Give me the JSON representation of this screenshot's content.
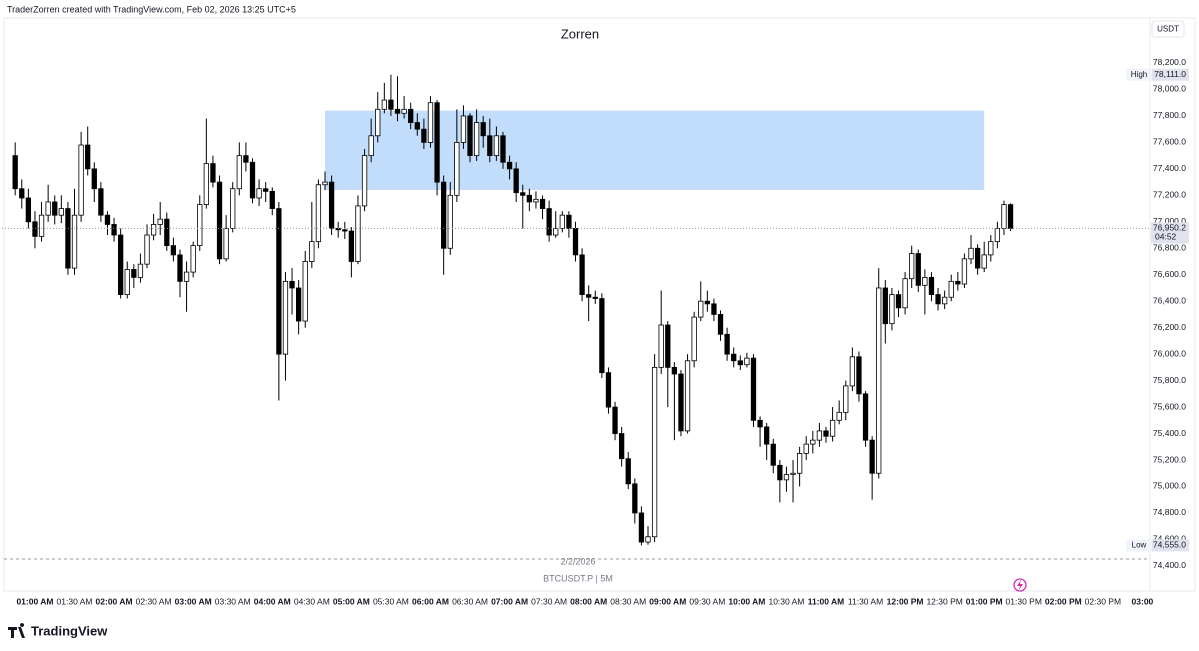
{
  "header": "TraderZorren created with TradingView.com, Feb 02, 2026 13:25 UTC+5",
  "brand": "TradingView",
  "chart_data": {
    "type": "candlestick",
    "title": "Zorren",
    "currency": "USDT",
    "symbol_label": "BTCUSDT.P | 5M",
    "date_label": "2/2/2026",
    "up_color": "#ffffff",
    "down_color": "#000000",
    "wick_color": "#000000",
    "grid": false,
    "xlim": [
      35,
      905
    ],
    "xticks": [
      {
        "value": 60,
        "label": "01:00 AM"
      },
      {
        "value": 90,
        "label": "01:30 AM"
      },
      {
        "value": 120,
        "label": "02:00 AM"
      },
      {
        "value": 150,
        "label": "02:30 AM"
      },
      {
        "value": 180,
        "label": "03:00 AM"
      },
      {
        "value": 210,
        "label": "03:30 AM"
      },
      {
        "value": 240,
        "label": "04:00 AM"
      },
      {
        "value": 270,
        "label": "04:30 AM"
      },
      {
        "value": 300,
        "label": "05:00 AM"
      },
      {
        "value": 330,
        "label": "05:30 AM"
      },
      {
        "value": 360,
        "label": "06:00 AM"
      },
      {
        "value": 390,
        "label": "06:30 AM"
      },
      {
        "value": 420,
        "label": "07:00 AM"
      },
      {
        "value": 450,
        "label": "07:30 AM"
      },
      {
        "value": 480,
        "label": "08:00 AM"
      },
      {
        "value": 510,
        "label": "08:30 AM"
      },
      {
        "value": 540,
        "label": "09:00 AM"
      },
      {
        "value": 570,
        "label": "09:30 AM"
      },
      {
        "value": 600,
        "label": "10:00 AM"
      },
      {
        "value": 630,
        "label": "10:30 AM"
      },
      {
        "value": 660,
        "label": "11:00 AM"
      },
      {
        "value": 690,
        "label": "11:30 AM"
      },
      {
        "value": 720,
        "label": "12:00 PM"
      },
      {
        "value": 750,
        "label": "12:30 PM"
      },
      {
        "value": 780,
        "label": "01:00 PM"
      },
      {
        "value": 810,
        "label": "01:30 PM"
      },
      {
        "value": 840,
        "label": "02:00 PM"
      },
      {
        "value": 870,
        "label": "02:30 PM"
      },
      {
        "value": 900,
        "label": "03:00"
      }
    ],
    "ylim": [
      74180,
      78540
    ],
    "yticks": [
      {
        "value": 74400,
        "label": "74,400.0"
      },
      {
        "value": 74600,
        "label": "74,600.0"
      },
      {
        "value": 74800,
        "label": "74,800.0"
      },
      {
        "value": 75000,
        "label": "75,000.0"
      },
      {
        "value": 75200,
        "label": "75,200.0"
      },
      {
        "value": 75400,
        "label": "75,400.0"
      },
      {
        "value": 75600,
        "label": "75,600.0"
      },
      {
        "value": 75800,
        "label": "75,800.0"
      },
      {
        "value": 76000,
        "label": "76,000.0"
      },
      {
        "value": 76200,
        "label": "76,200.0"
      },
      {
        "value": 76400,
        "label": "76,400.0"
      },
      {
        "value": 76600,
        "label": "76,600.0"
      },
      {
        "value": 76800,
        "label": "76,800.0"
      },
      {
        "value": 77000,
        "label": "77,000.0"
      },
      {
        "value": 77200,
        "label": "77,200.0"
      },
      {
        "value": 77400,
        "label": "77,400.0"
      },
      {
        "value": 77600,
        "label": "77,600.0"
      },
      {
        "value": 77800,
        "label": "77,800.0"
      },
      {
        "value": 78000,
        "label": "78,000.0"
      },
      {
        "value": 78200,
        "label": "78,200.0"
      }
    ],
    "zone": {
      "x": [
        280,
        780
      ],
      "y": [
        77240,
        77840
      ],
      "color": "#c2ddfb"
    },
    "high_marker": {
      "text": "High",
      "value": 78111.0,
      "value_label": "78,111.0"
    },
    "low_marker": {
      "text": "Low",
      "value": 74555.0,
      "value_label": "74,555.0"
    },
    "last_price": {
      "value": 76950.2,
      "value_label": "76,950.2",
      "countdown": "04:52"
    },
    "x": [
      45,
      50,
      55,
      60,
      65,
      70,
      75,
      80,
      85,
      90,
      95,
      100,
      105,
      110,
      115,
      120,
      125,
      130,
      135,
      140,
      145,
      150,
      155,
      160,
      165,
      170,
      175,
      180,
      185,
      190,
      195,
      200,
      205,
      210,
      215,
      220,
      225,
      230,
      235,
      240,
      245,
      250,
      255,
      260,
      265,
      270,
      275,
      280,
      285,
      290,
      295,
      300,
      305,
      310,
      315,
      320,
      325,
      330,
      335,
      340,
      345,
      350,
      355,
      360,
      365,
      370,
      375,
      380,
      385,
      390,
      395,
      400,
      405,
      410,
      415,
      420,
      425,
      430,
      435,
      440,
      445,
      450,
      455,
      460,
      465,
      470,
      475,
      480,
      485,
      490,
      495,
      500,
      505,
      510,
      515,
      520,
      525,
      530,
      535,
      540,
      545,
      550,
      555,
      560,
      565,
      570,
      575,
      580,
      585,
      590,
      595,
      600,
      605,
      610,
      615,
      620,
      625,
      630,
      635,
      640,
      645,
      650,
      655,
      660,
      665,
      670,
      675,
      680,
      685,
      690,
      695,
      700,
      705,
      710,
      715,
      720,
      725,
      730,
      735,
      740,
      745,
      750,
      755,
      760,
      765,
      770,
      775,
      780,
      785,
      790,
      795,
      800
    ],
    "open": [
      77500,
      77250,
      77180,
      77000,
      76890,
      77050,
      77150,
      77050,
      77100,
      76650,
      77050,
      77580,
      77400,
      77250,
      77050,
      76980,
      76900,
      76450,
      76640,
      76580,
      76680,
      76900,
      76980,
      77020,
      76820,
      76750,
      76550,
      76620,
      76820,
      77130,
      77440,
      77300,
      76720,
      76950,
      77250,
      77500,
      77450,
      77180,
      77250,
      77230,
      77100,
      76000,
      76550,
      76500,
      76250,
      76700,
      76850,
      77280,
      77300,
      76950,
      76940,
      76930,
      76700,
      77120,
      77500,
      77650,
      77850,
      77920,
      77850,
      77820,
      77850,
      77750,
      77700,
      77600,
      77900,
      77300,
      76800,
      77200,
      77600,
      77800,
      77500,
      77750,
      77650,
      77500,
      77650,
      77450,
      77400,
      77220,
      77200,
      77150,
      77170,
      77100,
      76900,
      76950,
      77050,
      76950,
      76750,
      76450,
      76430,
      76420,
      75860,
      75600,
      75400,
      75210,
      75020,
      74800,
      74580,
      74620,
      75900,
      76220,
      75900,
      75850,
      75420,
      75950,
      76280,
      76400,
      76380,
      76300,
      76150,
      76000,
      75950,
      75920,
      75970,
      75500,
      75450,
      75320,
      75160,
      75050,
      75090,
      75100,
      75250,
      75320,
      75350,
      75420,
      75380,
      75500,
      75560,
      75760,
      75980,
      75700,
      75350,
      75100,
      76500,
      76230,
      76450,
      76350,
      76570,
      76760,
      76520,
      76580,
      76450,
      76380,
      76430,
      76550,
      76530,
      76720,
      76800,
      76650,
      76750,
      76850,
      76950,
      77130
    ],
    "high": [
      77600,
      77320,
      77250,
      77080,
      77150,
      77280,
      77200,
      77200,
      77150,
      77250,
      77680,
      77720,
      77450,
      77300,
      77080,
      77030,
      76950,
      76700,
      76680,
      76760,
      76980,
      77060,
      77150,
      77070,
      76880,
      76790,
      76700,
      76850,
      77200,
      77780,
      77500,
      77350,
      77050,
      77300,
      77600,
      77600,
      77480,
      77320,
      77300,
      77260,
      77150,
      76620,
      76650,
      76560,
      76780,
      77150,
      77320,
      77380,
      77350,
      77000,
      77000,
      76960,
      77200,
      77550,
      77780,
      77980,
      78050,
      78111,
      78100,
      77950,
      77900,
      77820,
      77780,
      77950,
      77920,
      77350,
      77300,
      77850,
      77880,
      77820,
      77850,
      77800,
      77780,
      77720,
      77680,
      77500,
      77450,
      77280,
      77250,
      77230,
      77200,
      77160,
      77080,
      77080,
      77080,
      77000,
      76800,
      76520,
      76480,
      76460,
      75900,
      75640,
      75450,
      75260,
      75060,
      74850,
      74700,
      76000,
      76480,
      76250,
      75940,
      75880,
      76000,
      76320,
      76550,
      76480,
      76420,
      76330,
      76200,
      76050,
      75990,
      76010,
      76000,
      75530,
      75480,
      75360,
      75200,
      75150,
      75200,
      75300,
      75380,
      75420,
      75480,
      75450,
      75600,
      75650,
      75800,
      76050,
      76020,
      75720,
      75380,
      76650,
      76560,
      76500,
      76480,
      76620,
      76820,
      76790,
      76640,
      76620,
      76500,
      76480,
      76600,
      76620,
      76760,
      76900,
      76830,
      76850,
      76900,
      77000,
      77160,
      77140
    ],
    "low": [
      77200,
      77100,
      76950,
      76800,
      76850,
      77000,
      76980,
      76990,
      76600,
      76600,
      77000,
      77350,
      77150,
      77000,
      76900,
      76850,
      76420,
      76420,
      76500,
      76540,
      76650,
      76860,
      76900,
      76780,
      76700,
      76430,
      76320,
      76580,
      76780,
      77100,
      77260,
      76680,
      76700,
      76920,
      77200,
      77380,
      77140,
      77120,
      77150,
      77050,
      75650,
      75800,
      76300,
      76150,
      76200,
      76650,
      76800,
      77240,
      76900,
      76880,
      76870,
      76580,
      76680,
      77080,
      77450,
      77600,
      77820,
      77800,
      77760,
      77780,
      77700,
      77650,
      77550,
      77560,
      77200,
      76600,
      76750,
      77150,
      77550,
      77450,
      77460,
      77560,
      77450,
      77460,
      77400,
      77320,
      77150,
      76950,
      77080,
      77100,
      77020,
      76850,
      76880,
      76920,
      76880,
      76700,
      76400,
      76250,
      76380,
      75820,
      75550,
      75350,
      75150,
      74980,
      74720,
      74555,
      74560,
      74580,
      75850,
      75600,
      75350,
      75380,
      75400,
      75900,
      76250,
      76320,
      76250,
      76100,
      75950,
      75900,
      75880,
      75900,
      75450,
      75300,
      75200,
      75100,
      74880,
      74960,
      74880,
      75000,
      75200,
      75250,
      75300,
      75330,
      75340,
      75470,
      75500,
      75720,
      75640,
      75300,
      74900,
      75060,
      76080,
      76180,
      76280,
      76300,
      76500,
      76470,
      76300,
      76400,
      76330,
      76340,
      76400,
      76480,
      76500,
      76680,
      76600,
      76620,
      76700,
      76800,
      76900,
      76930
    ],
    "close": [
      77250,
      77180,
      77000,
      76890,
      77050,
      77150,
      77050,
      77100,
      76650,
      77050,
      77580,
      77400,
      77250,
      77050,
      76980,
      76900,
      76450,
      76640,
      76580,
      76680,
      76900,
      76980,
      77020,
      76820,
      76750,
      76550,
      76620,
      76820,
      77130,
      77440,
      77300,
      76720,
      76950,
      77250,
      77500,
      77450,
      77180,
      77250,
      77230,
      77100,
      76000,
      76550,
      76500,
      76250,
      76700,
      76850,
      77280,
      77300,
      76950,
      76940,
      76930,
      76700,
      77120,
      77500,
      77650,
      77850,
      77920,
      77850,
      77820,
      77850,
      77750,
      77700,
      77600,
      77900,
      77300,
      76800,
      77200,
      77600,
      77800,
      77500,
      77750,
      77650,
      77500,
      77650,
      77450,
      77400,
      77220,
      77200,
      77150,
      77170,
      77100,
      76900,
      76950,
      77050,
      76950,
      76750,
      76450,
      76430,
      76420,
      75860,
      75600,
      75400,
      75210,
      75020,
      74800,
      74580,
      74620,
      75900,
      76220,
      75900,
      75850,
      75420,
      75950,
      76280,
      76400,
      76380,
      76300,
      76150,
      76000,
      75950,
      75920,
      75970,
      75500,
      75450,
      75320,
      75160,
      75050,
      75090,
      75100,
      75250,
      75320,
      75350,
      75420,
      75380,
      75500,
      75560,
      75760,
      75980,
      75700,
      75350,
      75100,
      76500,
      76230,
      76450,
      76350,
      76570,
      76760,
      76520,
      76580,
      76450,
      76380,
      76430,
      76550,
      76530,
      76720,
      76800,
      76650,
      76750,
      76850,
      76950,
      77130,
      76950.2
    ]
  }
}
